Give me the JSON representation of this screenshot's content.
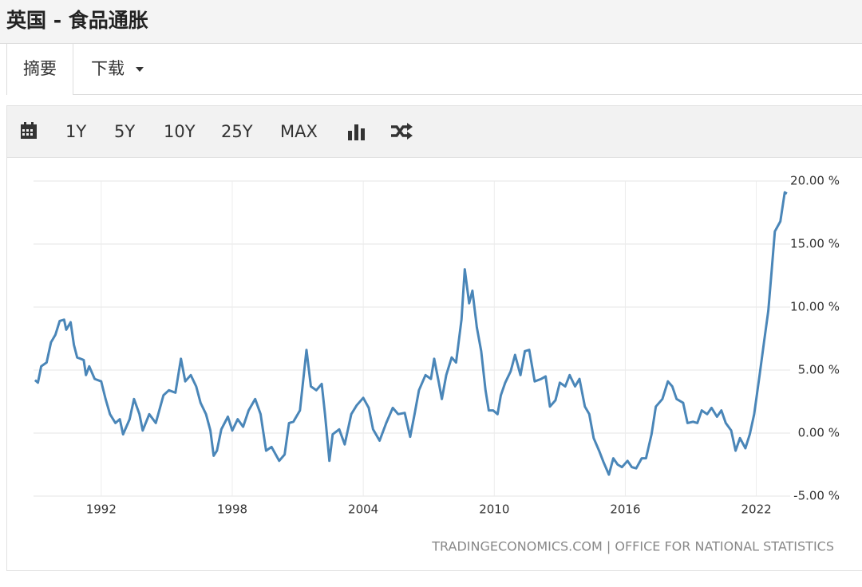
{
  "header": {
    "title": "英国 - 食品通胀"
  },
  "tabs": [
    "摘要",
    "下载"
  ],
  "toolbar": [
    "1Y",
    "5Y",
    "10Y",
    "25Y",
    "MAX"
  ],
  "chart_data": {
    "type": "line",
    "source": "TRADINGECONOMICS.COM | OFFICE FOR NATIONAL STATISTICS",
    "color": "#4a86b8",
    "grid": true,
    "xlim": [
      1988.9,
      2023.55
    ],
    "ylim": [
      -5,
      20
    ],
    "xticks": [
      1992,
      1998,
      2004,
      2010,
      2016,
      2022
    ],
    "yticks": [
      {
        "value": 20,
        "label": "20.00 %"
      },
      {
        "value": 15,
        "label": "15.00 %"
      },
      {
        "value": 10,
        "label": "10.00 %"
      },
      {
        "value": 5,
        "label": "5.00 %"
      },
      {
        "value": 0,
        "label": "0.00 %"
      },
      {
        "value": -5,
        "label": "-5.00 %"
      }
    ],
    "x": [
      1988.97,
      1989.1,
      1989.25,
      1989.5,
      1989.7,
      1989.9,
      1990.1,
      1990.3,
      1990.4,
      1990.6,
      1990.75,
      1990.9,
      1991.2,
      1991.3,
      1991.45,
      1991.7,
      1992.0,
      1992.2,
      1992.4,
      1992.65,
      1992.85,
      1993.0,
      1993.3,
      1993.5,
      1993.75,
      1993.9,
      1994.2,
      1994.5,
      1994.85,
      1995.1,
      1995.4,
      1995.65,
      1995.85,
      1996.1,
      1996.35,
      1996.55,
      1996.8,
      1997.0,
      1997.15,
      1997.3,
      1997.5,
      1997.8,
      1998.0,
      1998.25,
      1998.5,
      1998.75,
      1999.05,
      1999.3,
      1999.55,
      1999.8,
      2000.15,
      2000.4,
      2000.6,
      2000.8,
      2001.1,
      2001.4,
      2001.6,
      2001.85,
      2002.1,
      2002.25,
      2002.45,
      2002.6,
      2002.9,
      2003.15,
      2003.45,
      2003.7,
      2004.0,
      2004.25,
      2004.45,
      2004.75,
      2005.05,
      2005.35,
      2005.6,
      2005.9,
      2006.15,
      2006.35,
      2006.55,
      2006.85,
      2007.1,
      2007.25,
      2007.45,
      2007.6,
      2007.8,
      2008.05,
      2008.25,
      2008.5,
      2008.65,
      2008.85,
      2009.0,
      2009.2,
      2009.4,
      2009.6,
      2009.75,
      2009.95,
      2010.15,
      2010.3,
      2010.5,
      2010.75,
      2010.95,
      2011.2,
      2011.4,
      2011.6,
      2011.85,
      2012.15,
      2012.35,
      2012.55,
      2012.8,
      2013.0,
      2013.25,
      2013.45,
      2013.7,
      2013.9,
      2014.15,
      2014.35,
      2014.55,
      2014.8,
      2015.0,
      2015.25,
      2015.45,
      2015.65,
      2015.85,
      2016.1,
      2016.3,
      2016.5,
      2016.75,
      2016.95,
      2017.2,
      2017.4,
      2017.7,
      2017.95,
      2018.15,
      2018.35,
      2018.65,
      2018.85,
      2019.1,
      2019.3,
      2019.5,
      2019.75,
      2019.95,
      2020.2,
      2020.4,
      2020.6,
      2020.85,
      2021.05,
      2021.25,
      2021.5,
      2021.7,
      2021.9,
      2022.15,
      2022.35,
      2022.55,
      2022.7,
      2022.85,
      2023.1,
      2023.3,
      2023.4
    ],
    "values": [
      4.2,
      4.0,
      5.3,
      5.6,
      7.2,
      7.8,
      8.9,
      9.0,
      8.2,
      8.8,
      7.0,
      6.0,
      5.8,
      4.6,
      5.3,
      4.3,
      4.1,
      2.7,
      1.5,
      0.8,
      1.1,
      -0.1,
      1.1,
      2.7,
      1.5,
      0.2,
      1.5,
      0.8,
      3.0,
      3.4,
      3.2,
      5.9,
      4.1,
      4.6,
      3.7,
      2.4,
      1.5,
      0.2,
      -1.8,
      -1.4,
      0.3,
      1.3,
      0.2,
      1.1,
      0.5,
      1.8,
      2.7,
      1.5,
      -1.4,
      -1.1,
      -2.2,
      -1.7,
      0.8,
      0.9,
      1.8,
      6.6,
      3.7,
      3.4,
      3.9,
      1.5,
      -2.2,
      -0.1,
      0.3,
      -0.9,
      1.5,
      2.2,
      2.8,
      2.0,
      0.3,
      -0.6,
      0.8,
      2.0,
      1.5,
      1.6,
      -0.3,
      1.5,
      3.4,
      4.6,
      4.3,
      5.9,
      4.1,
      2.7,
      4.6,
      6.0,
      5.6,
      9.0,
      13.0,
      10.3,
      11.3,
      8.4,
      6.5,
      3.4,
      1.8,
      1.8,
      1.5,
      3.0,
      4.0,
      4.9,
      6.2,
      4.6,
      6.5,
      6.6,
      4.1,
      4.3,
      4.5,
      2.1,
      2.6,
      4.0,
      3.7,
      4.6,
      3.7,
      4.3,
      2.1,
      1.5,
      -0.4,
      -1.4,
      -2.3,
      -3.3,
      -2.0,
      -2.5,
      -2.7,
      -2.2,
      -2.7,
      -2.8,
      -2.0,
      -2.0,
      -0.1,
      2.1,
      2.7,
      4.1,
      3.7,
      2.7,
      2.4,
      0.8,
      0.9,
      0.8,
      1.8,
      1.5,
      2.0,
      1.3,
      1.8,
      0.8,
      0.2,
      -1.4,
      -0.4,
      -1.2,
      -0.1,
      1.5,
      4.6,
      7.2,
      9.7,
      12.8,
      16.0,
      16.8,
      19.1,
      19.0
    ]
  }
}
